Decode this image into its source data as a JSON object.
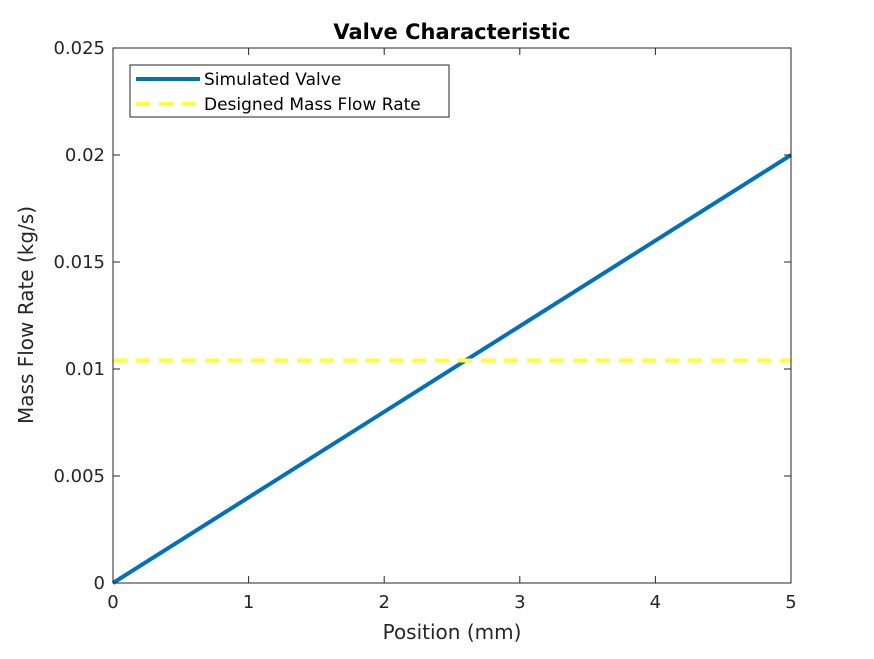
{
  "chart_data": {
    "type": "line",
    "title": "Valve Characteristic",
    "xlabel": "Position (mm)",
    "ylabel": "Mass Flow Rate (kg/s)",
    "xlim": [
      0,
      5
    ],
    "ylim": [
      0,
      0.025
    ],
    "xticks": [
      "0",
      "1",
      "2",
      "3",
      "4",
      "5"
    ],
    "yticks": [
      "0",
      "0.005",
      "0.01",
      "0.015",
      "0.02",
      "0.025"
    ],
    "grid": false,
    "legend_position": "top-left",
    "series": [
      {
        "name": "Simulated Valve",
        "style": "solid",
        "color": "#0072BD",
        "x": [
          0,
          5
        ],
        "y": [
          0,
          0.02
        ]
      },
      {
        "name": "Designed Mass Flow Rate",
        "style": "dashed",
        "color": "#FFFF33",
        "x": [
          0,
          5
        ],
        "y": [
          0.0104,
          0.0104
        ]
      }
    ]
  }
}
